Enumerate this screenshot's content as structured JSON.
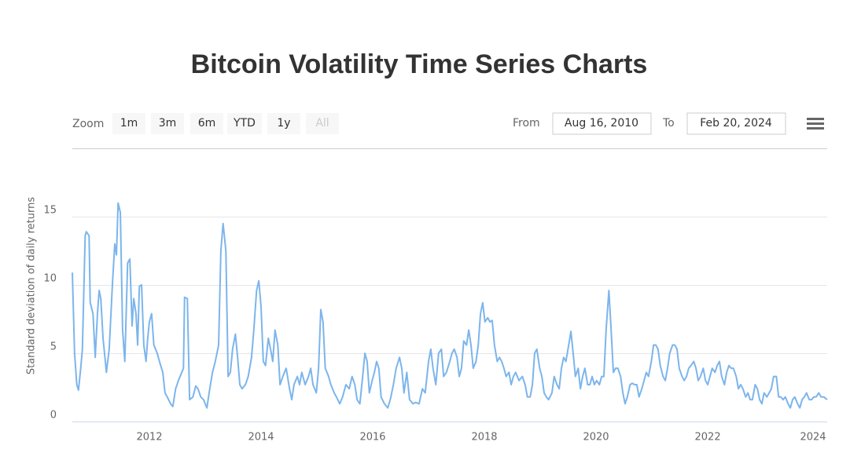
{
  "chart_data": {
    "type": "line",
    "title": "Bitcoin Volatility Time Series Charts",
    "y_label": "Standard deviation of daily returns",
    "color": "#7cb5ec",
    "grid": true,
    "xlim": [
      2010.62,
      2024.14
    ],
    "xticks": [
      2012,
      2014,
      2016,
      2018,
      2020,
      2022,
      2024
    ],
    "ylim": [
      0,
      19
    ],
    "yticks": [
      0,
      5,
      10,
      15
    ],
    "x": [
      2010.62,
      2010.66,
      2010.7,
      2010.73,
      2010.77,
      2010.8,
      2010.85,
      2010.87,
      2010.92,
      2010.94,
      2010.99,
      2011.03,
      2011.07,
      2011.1,
      2011.13,
      2011.17,
      2011.23,
      2011.28,
      2011.34,
      2011.38,
      2011.41,
      2011.44,
      2011.48,
      2011.52,
      2011.56,
      2011.61,
      2011.65,
      2011.69,
      2011.72,
      2011.76,
      2011.79,
      2011.82,
      2011.86,
      2011.9,
      2011.94,
      2011.97,
      2012.0,
      2012.04,
      2012.08,
      2012.14,
      2012.18,
      2012.24,
      2012.28,
      2012.32,
      2012.38,
      2012.42,
      2012.47,
      2012.52,
      2012.58,
      2012.61,
      2012.63,
      2012.68,
      2012.72,
      2012.78,
      2012.83,
      2012.87,
      2012.92,
      2012.97,
      2013.03,
      2013.07,
      2013.13,
      2013.18,
      2013.24,
      2013.28,
      2013.32,
      2013.37,
      2013.41,
      2013.45,
      2013.49,
      2013.54,
      2013.58,
      2013.62,
      2013.66,
      2013.72,
      2013.77,
      2013.83,
      2013.87,
      2013.92,
      2013.96,
      2014.0,
      2014.04,
      2014.08,
      2014.13,
      2014.17,
      2014.21,
      2014.25,
      2014.3,
      2014.34,
      2014.39,
      2014.45,
      2014.51,
      2014.55,
      2014.59,
      2014.65,
      2014.69,
      2014.73,
      2014.79,
      2014.85,
      2014.89,
      2014.93,
      2014.99,
      2015.03,
      2015.07,
      2015.11,
      2015.15,
      2015.21,
      2015.25,
      2015.31,
      2015.35,
      2015.41,
      2015.46,
      2015.52,
      2015.58,
      2015.63,
      2015.68,
      2015.72,
      2015.77,
      2015.82,
      2015.86,
      2015.9,
      2015.94,
      2015.99,
      2016.03,
      2016.07,
      2016.11,
      2016.15,
      2016.21,
      2016.27,
      2016.32,
      2016.37,
      2016.42,
      2016.48,
      2016.52,
      2016.56,
      2016.61,
      2016.66,
      2016.72,
      2016.77,
      2016.83,
      2016.89,
      2016.94,
      2017.0,
      2017.04,
      2017.08,
      2017.13,
      2017.18,
      2017.23,
      2017.27,
      2017.32,
      2017.38,
      2017.42,
      2017.46,
      2017.51,
      2017.55,
      2017.59,
      2017.63,
      2017.68,
      2017.72,
      2017.76,
      2017.8,
      2017.85,
      2017.89,
      2017.93,
      2017.97,
      2018.01,
      2018.06,
      2018.1,
      2018.14,
      2018.18,
      2018.23,
      2018.27,
      2018.31,
      2018.35,
      2018.39,
      2018.44,
      2018.48,
      2018.52,
      2018.56,
      2018.62,
      2018.68,
      2018.73,
      2018.77,
      2018.82,
      2018.86,
      2018.9,
      2018.94,
      2018.99,
      2019.03,
      2019.07,
      2019.11,
      2019.15,
      2019.21,
      2019.25,
      2019.3,
      2019.34,
      2019.38,
      2019.42,
      2019.46,
      2019.51,
      2019.55,
      2019.59,
      2019.63,
      2019.68,
      2019.72,
      2019.76,
      2019.8,
      2019.85,
      2019.89,
      2019.93,
      2019.97,
      2020.01,
      2020.06,
      2020.1,
      2020.14,
      2020.18,
      2020.23,
      2020.27,
      2020.31,
      2020.35,
      2020.39,
      2020.44,
      2020.48,
      2020.52,
      2020.56,
      2020.61,
      2020.65,
      2020.69,
      2020.73,
      2020.77,
      2020.82,
      2020.86,
      2020.9,
      2020.94,
      2020.99,
      2021.03,
      2021.07,
      2021.11,
      2021.15,
      2021.2,
      2021.24,
      2021.28,
      2021.32,
      2021.37,
      2021.41,
      2021.45,
      2021.49,
      2021.54,
      2021.58,
      2021.62,
      2021.66,
      2021.7,
      2021.75,
      2021.79,
      2021.83,
      2021.87,
      2021.92,
      2021.96,
      2022.0,
      2022.04,
      2022.08,
      2022.13,
      2022.17,
      2022.21,
      2022.25,
      2022.3,
      2022.34,
      2022.38,
      2022.42,
      2022.46,
      2022.51,
      2022.55,
      2022.59,
      2022.63,
      2022.68,
      2022.72,
      2022.76,
      2022.8,
      2022.85,
      2022.89,
      2022.93,
      2022.97,
      2023.01,
      2023.06,
      2023.1,
      2023.14,
      2023.18,
      2023.23,
      2023.27,
      2023.31,
      2023.35,
      2023.39,
      2023.44,
      2023.48,
      2023.52,
      2023.56,
      2023.61,
      2023.65,
      2023.69,
      2023.73,
      2023.77,
      2023.82,
      2023.86,
      2023.9,
      2023.94,
      2023.99,
      2024.03,
      2024.08,
      2024.14
    ],
    "values": [
      10.9,
      5.0,
      2.7,
      2.3,
      3.9,
      5.3,
      13.6,
      13.9,
      13.6,
      8.7,
      7.9,
      4.7,
      7.9,
      9.6,
      9.0,
      6.1,
      3.6,
      5.3,
      10.2,
      13.0,
      12.2,
      16.0,
      15.3,
      6.7,
      4.4,
      11.6,
      11.9,
      7.0,
      9.0,
      7.9,
      5.6,
      9.9,
      10.0,
      5.6,
      4.4,
      6.1,
      7.3,
      7.9,
      5.6,
      5.0,
      4.4,
      3.6,
      2.1,
      1.8,
      1.3,
      1.1,
      2.4,
      3.0,
      3.6,
      3.9,
      9.1,
      9.0,
      1.6,
      1.8,
      2.6,
      2.4,
      1.8,
      1.6,
      1.0,
      2.1,
      3.6,
      4.4,
      5.6,
      12.5,
      14.5,
      12.5,
      3.3,
      3.6,
      5.3,
      6.4,
      4.7,
      2.7,
      2.4,
      2.7,
      3.3,
      4.7,
      6.7,
      9.6,
      10.3,
      8.4,
      4.4,
      4.1,
      6.1,
      5.3,
      4.4,
      6.7,
      5.6,
      2.7,
      3.3,
      3.9,
      2.4,
      1.6,
      2.7,
      3.3,
      2.7,
      3.6,
      2.7,
      3.3,
      3.9,
      2.7,
      2.1,
      3.9,
      8.2,
      7.3,
      3.9,
      3.3,
      2.7,
      2.1,
      1.8,
      1.3,
      1.8,
      2.7,
      2.4,
      3.3,
      2.7,
      1.6,
      1.3,
      3.3,
      5.0,
      4.4,
      2.1,
      3.0,
      3.6,
      4.4,
      3.9,
      1.8,
      1.3,
      1.0,
      1.7,
      2.7,
      3.9,
      4.7,
      3.9,
      2.1,
      3.6,
      1.6,
      1.3,
      1.4,
      1.3,
      2.4,
      2.1,
      4.4,
      5.3,
      3.9,
      2.7,
      5.0,
      5.3,
      3.3,
      3.6,
      4.4,
      5.0,
      5.3,
      4.7,
      3.3,
      3.9,
      5.9,
      5.6,
      6.7,
      5.6,
      3.9,
      4.4,
      5.6,
      7.9,
      8.7,
      7.3,
      7.6,
      7.3,
      7.4,
      5.6,
      4.4,
      4.7,
      4.4,
      3.9,
      3.3,
      3.6,
      2.7,
      3.3,
      3.6,
      3.0,
      3.3,
      2.7,
      1.8,
      1.8,
      2.7,
      5.0,
      5.3,
      3.9,
      3.3,
      2.1,
      1.8,
      1.6,
      2.1,
      3.3,
      2.7,
      2.4,
      3.9,
      4.7,
      4.4,
      5.6,
      6.6,
      5.0,
      3.3,
      3.9,
      2.4,
      3.3,
      3.9,
      2.7,
      2.7,
      3.3,
      2.7,
      3.0,
      2.7,
      3.3,
      3.3,
      6.7,
      9.6,
      6.7,
      3.6,
      3.9,
      3.9,
      3.3,
      2.1,
      1.3,
      1.8,
      2.7,
      2.8,
      2.7,
      2.7,
      1.8,
      2.4,
      3.0,
      3.6,
      3.3,
      4.4,
      5.6,
      5.6,
      5.3,
      4.1,
      3.3,
      3.0,
      3.9,
      5.0,
      5.6,
      5.6,
      5.3,
      3.9,
      3.3,
      3.0,
      3.3,
      3.9,
      4.1,
      4.4,
      3.9,
      3.0,
      3.3,
      3.9,
      3.0,
      2.7,
      3.3,
      3.9,
      3.6,
      4.1,
      4.4,
      3.3,
      2.7,
      3.6,
      4.1,
      3.9,
      3.9,
      3.3,
      2.4,
      2.7,
      2.4,
      1.8,
      2.1,
      1.6,
      1.6,
      2.7,
      2.4,
      1.6,
      1.3,
      2.1,
      1.8,
      2.1,
      2.4,
      3.3,
      3.3,
      1.8,
      1.8,
      1.6,
      1.8,
      1.3,
      1.0,
      1.6,
      1.8,
      1.3,
      1.0,
      1.6,
      1.8,
      2.1,
      1.6,
      1.6,
      1.8,
      1.8,
      2.1,
      1.8,
      1.8,
      1.6
    ]
  },
  "range_selector": {
    "label": "Zoom",
    "buttons": [
      "1m",
      "3m",
      "6m",
      "YTD",
      "1y",
      "All"
    ],
    "from_label": "From",
    "from": "Aug 16, 2010",
    "to_label": "To",
    "to": "Feb 20, 2024"
  }
}
